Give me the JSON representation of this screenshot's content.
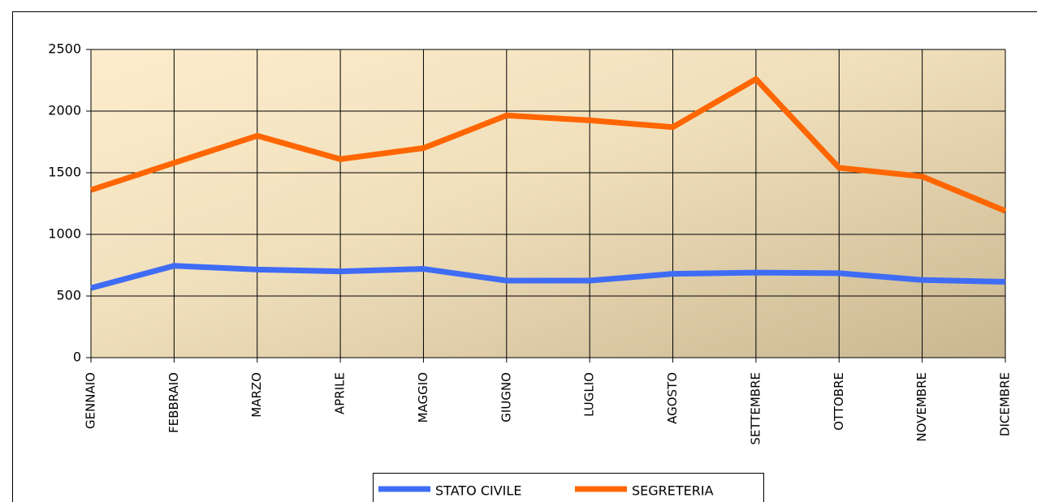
{
  "chart_data": {
    "type": "line",
    "categories": [
      "GENNAIO",
      "FEBBRAIO",
      "MARZO",
      "APRILE",
      "MAGGIO",
      "GIUGNO",
      "LUGLIO",
      "AGOSTO",
      "SETTEMBRE",
      "OTTOBRE",
      "NOVEMBRE",
      "DICEMBRE"
    ],
    "series": [
      {
        "name": "STATO CIVILE",
        "color": "#3f6cf5",
        "values": [
          565,
          745,
          715,
          700,
          720,
          625,
          625,
          680,
          690,
          685,
          630,
          615
        ]
      },
      {
        "name": "SEGRETERIA",
        "color": "#ff6600",
        "values": [
          1360,
          1580,
          1800,
          1610,
          1700,
          1965,
          1925,
          1870,
          2260,
          1540,
          1470,
          1190
        ]
      }
    ],
    "ylim": [
      0,
      2500
    ],
    "yticks": [
      0,
      500,
      1000,
      1500,
      2000,
      2500
    ],
    "grid": true,
    "legend": "bottom"
  }
}
